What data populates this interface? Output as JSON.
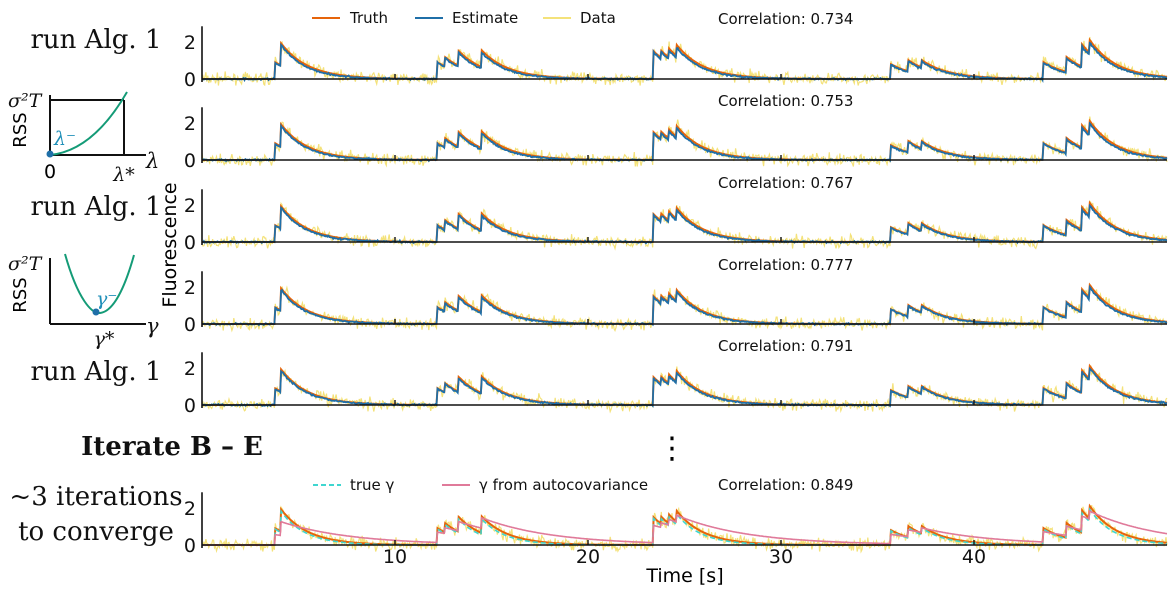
{
  "left_labels": {
    "run_alg_1": "run Alg. 1",
    "run_alg_2": "run Alg. 1",
    "run_alg_3": "run Alg. 1",
    "iterate": "Iterate B – E",
    "converge_line1": "~3 iterations",
    "converge_line2": "to converge"
  },
  "inset_lambda": {
    "ylabel": "RSS",
    "y_top": "σ²T",
    "x_zero": "0",
    "x_star": "λ*",
    "x_var": "λ",
    "curve_label": "λ⁻"
  },
  "inset_gamma": {
    "ylabel": "RSS",
    "y_top": "σ²T",
    "x_star": "γ*",
    "x_var": "γ",
    "curve_label": "γ⁻"
  },
  "ellipsis": "⋮",
  "colors": {
    "truth": "#e6640a",
    "estimate": "#1f6fa8",
    "data": "#f4e27a",
    "true_gamma": "#3fd6d0",
    "autocov": "#e07a9a",
    "inset_curve": "#149b77",
    "inset_marker": "#1f6fa8"
  },
  "chart_data": {
    "type": "line",
    "xlabel": "Time [s]",
    "ylabel": "Fluorescence",
    "xlim": [
      0,
      50
    ],
    "ylim": [
      0,
      2.8
    ],
    "xticks": [
      10,
      20,
      30,
      40
    ],
    "yticks": [
      0,
      2
    ],
    "spike_times": [
      3.8,
      4.1,
      12.2,
      12.6,
      13.3,
      14.5,
      23.4,
      23.8,
      24.2,
      24.6,
      35.7,
      36.6,
      37.3,
      43.6,
      44.8,
      45.6,
      46.0
    ],
    "spike_amplitudes": [
      0.9,
      1.2,
      0.9,
      0.5,
      0.8,
      0.9,
      1.5,
      0.4,
      0.5,
      0.6,
      0.8,
      0.6,
      0.4,
      0.9,
      0.8,
      1.2,
      0.7
    ],
    "decay_time_constant_s": 1.4,
    "panels": [
      {
        "correlation": "Correlation:  0.734",
        "series": [
          "Data",
          "Truth",
          "Estimate"
        ]
      },
      {
        "correlation": "Correlation:  0.753",
        "series": [
          "Data",
          "Truth",
          "Estimate"
        ]
      },
      {
        "correlation": "Correlation:  0.767",
        "series": [
          "Data",
          "Truth",
          "Estimate"
        ]
      },
      {
        "correlation": "Correlation:  0.777",
        "series": [
          "Data",
          "Truth",
          "Estimate"
        ]
      },
      {
        "correlation": "Correlation:  0.791",
        "series": [
          "Data",
          "Truth",
          "Estimate"
        ]
      },
      {
        "correlation": "Correlation:  0.849",
        "series": [
          "Data",
          "Truth",
          "true γ",
          "γ from autocovariance"
        ]
      }
    ],
    "legend_top": [
      "Truth",
      "Estimate",
      "Data"
    ],
    "legend_bottom": [
      "true γ",
      "γ from autocovariance"
    ]
  }
}
